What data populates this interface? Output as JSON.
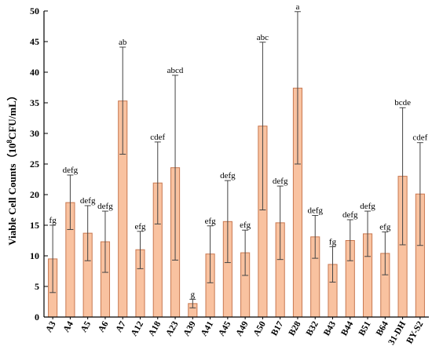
{
  "chart_data": {
    "type": "bar",
    "ylabel": "Viable Cell Counts（10⁸CFU/mL）",
    "ylabel_parts": {
      "before": "Viable Cell Counts（10",
      "sup": "8",
      "after": "CFU/mL）"
    },
    "ylim": [
      0,
      50
    ],
    "yticks": [
      0,
      5,
      10,
      15,
      20,
      25,
      30,
      35,
      40,
      45,
      50
    ],
    "grid": false,
    "bar_color": "#f9c2a0",
    "bar_edge_color": "#c87850",
    "categories": [
      "A3",
      "A4",
      "A5",
      "A6",
      "A7",
      "A12",
      "A18",
      "A23",
      "A39",
      "A41",
      "A45",
      "A49",
      "A50",
      "B17",
      "B28",
      "B32",
      "B43",
      "B44",
      "B51",
      "B64",
      "31-DH",
      "BY-S2"
    ],
    "values": [
      9.5,
      18.7,
      13.7,
      12.3,
      35.3,
      11.0,
      21.9,
      24.4,
      2.2,
      10.3,
      15.6,
      10.5,
      31.2,
      15.4,
      37.4,
      13.1,
      8.6,
      12.5,
      13.6,
      10.4,
      23.0,
      20.1
    ],
    "error_low": [
      4.0,
      14.3,
      9.2,
      7.3,
      26.6,
      7.9,
      15.2,
      9.3,
      1.5,
      5.6,
      8.9,
      6.8,
      17.5,
      9.4,
      25.0,
      9.6,
      5.7,
      9.2,
      9.9,
      6.9,
      11.8,
      11.7
    ],
    "error_high": [
      15.0,
      23.2,
      18.2,
      17.3,
      44.1,
      14.0,
      28.6,
      39.5,
      2.9,
      14.9,
      22.3,
      14.2,
      44.9,
      21.4,
      49.9,
      16.6,
      11.5,
      15.9,
      17.3,
      13.9,
      34.2,
      28.5
    ],
    "significance": [
      "fg",
      "defg",
      "defg",
      "defg",
      "ab",
      "efg",
      "cdef",
      "abcd",
      "g",
      "efg",
      "defg",
      "efg",
      "abc",
      "defg",
      "a",
      "defg",
      "fg",
      "defg",
      "defg",
      "efg",
      "bcde",
      "cdef"
    ]
  }
}
